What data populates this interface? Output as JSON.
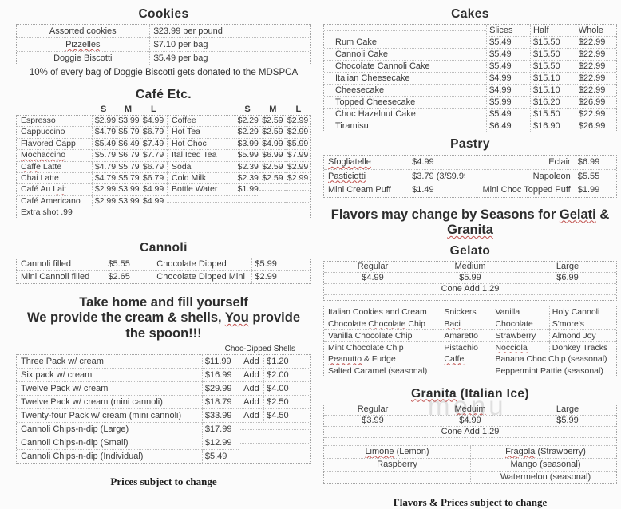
{
  "watermark": "menu",
  "left": {
    "cookies": {
      "title": "Cookies",
      "rows": [
        {
          "item": "Assorted cookies",
          "price": "$23.99 per pound"
        },
        {
          "item": "Pizzelles",
          "mark": "Pizzelles",
          "price": "$7.10 per bag"
        },
        {
          "item": "Doggie Biscotti",
          "price": "$5.49 per bag"
        }
      ],
      "note": "10% of every bag of Doggie Biscotti gets donated to the MDSPCA"
    },
    "cafe": {
      "title": "Café Etc.",
      "size_headers": [
        "S",
        "M",
        "L"
      ],
      "rows": [
        {
          "l_item": "Espresso",
          "l_s": "$2.99",
          "l_m": "$3.99",
          "l_l": "$4.99",
          "r_item": "Coffee",
          "r_s": "$2.29",
          "r_m": "$2.59",
          "r_l": "$2.99"
        },
        {
          "l_item": "Cappuccino",
          "l_s": "$4.79",
          "l_m": "$5.79",
          "l_l": "$6.79",
          "r_item": "Hot Tea",
          "r_s": "$2.29",
          "r_m": "$2.59",
          "r_l": "$2.99"
        },
        {
          "l_item": "Flavored Capp",
          "l_s": "$5.49",
          "l_m": "$6.49",
          "l_l": "$7.49",
          "r_item": "Hot Choc",
          "r_s": "$3.99",
          "r_m": "$4.99",
          "r_l": "$5.99"
        },
        {
          "l_item": "Mochaccino",
          "l_mark": "Mochaccino",
          "l_s": "$5.79",
          "l_m": "$6.79",
          "l_l": "$7.79",
          "r_item": "Ital Iced Tea",
          "r_s": "$5.99",
          "r_m": "$6.99",
          "r_l": "$7.99"
        },
        {
          "l_item": "Caffe Latte",
          "l_mark": "Caffe",
          "l_s": "$4.79",
          "l_m": "$5.79",
          "l_l": "$6.79",
          "r_item": "Soda",
          "r_s": "$2.39",
          "r_m": "$2.59",
          "r_l": "$2.99"
        },
        {
          "l_item": "Chai Latte",
          "l_s": "$4.79",
          "l_m": "$5.79",
          "l_l": "$6.79",
          "r_item": "Cold Milk",
          "r_s": "$2.39",
          "r_m": "$2.59",
          "r_l": "$2.99"
        },
        {
          "l_item": "Café Au Lait",
          "l_mark": "Lait",
          "l_s": "$2.99",
          "l_m": "$3.99",
          "l_l": "$4.99",
          "r_item": "Bottle Water",
          "r_s": "$1.99",
          "r_m": "",
          "r_l": ""
        },
        {
          "l_item": "Café Americano",
          "l_s": "$2.99",
          "l_m": "$3.99",
          "l_l": "$4.99",
          "r_item": "",
          "r_s": "",
          "r_m": "",
          "r_l": ""
        },
        {
          "l_item": "Extra shot .99",
          "l_s": "",
          "l_m": "",
          "l_l": "",
          "r_item": "",
          "r_s": "",
          "r_m": "",
          "r_l": ""
        }
      ]
    },
    "cannoli": {
      "title": "Cannoli",
      "rows": [
        {
          "c1": "Cannoli filled",
          "p1": "$5.55",
          "c2": "Chocolate Dipped",
          "p2": "$5.99"
        },
        {
          "c1": "Mini Cannoli filled",
          "p1": "$2.65",
          "c2": "Chocolate Dipped Mini",
          "p2": "$2.99"
        }
      ]
    },
    "take_home": {
      "line1": "Take home and fill yourself",
      "line2_p1": "We provide the cream & shells, ",
      "line2_m": "You",
      "line2_p2": " provide the spoon!!!"
    },
    "packs": {
      "shells_label": "Choc-Dipped Shells",
      "rows": [
        {
          "item": "Three Pack w/ cream",
          "price": "$11.99",
          "add": "Add",
          "shell": "$1.20"
        },
        {
          "item": "Six pack w/ cream",
          "price": "$16.99",
          "add": "Add",
          "shell": "$2.00"
        },
        {
          "item": "Twelve Pack w/ cream",
          "price": "$29.99",
          "add": "Add",
          "shell": "$4.00"
        },
        {
          "item": "Twelve Pack w/ cream (mini cannoli)",
          "price": "$18.79",
          "add": "Add",
          "shell": "$2.50"
        },
        {
          "item": "Twenty-four Pack w/ cream (mini cannoli)",
          "price": "$33.99",
          "add": "Add",
          "shell": "$4.50"
        },
        {
          "item": "Cannoli Chips-n-dip (Large)",
          "price": "$17.99",
          "add": "",
          "shell": ""
        },
        {
          "item": "Cannoli Chips-n-dip (Small)",
          "price": "$12.99",
          "add": "",
          "shell": ""
        },
        {
          "item": "Cannoli Chips-n-dip (Individual)",
          "price": "$5.49",
          "add": "",
          "shell": ""
        }
      ]
    },
    "footer_note": "Prices subject to change"
  },
  "right": {
    "cakes": {
      "title": "Cakes",
      "headers": [
        "Slices",
        "Half",
        "Whole"
      ],
      "rows": [
        {
          "item": "Rum Cake",
          "slices": "$5.49",
          "half": "$15.50",
          "whole": "$22.99"
        },
        {
          "item": "Cannoli Cake",
          "slices": "$5.49",
          "half": "$15.50",
          "whole": "$22.99"
        },
        {
          "item": "Chocolate Cannoli Cake",
          "slices": "$5.49",
          "half": "$15.50",
          "whole": "$22.99"
        },
        {
          "item": "Italian Cheesecake",
          "slices": "$4.99",
          "half": "$15.10",
          "whole": "$22.99"
        },
        {
          "item": "Cheesecake",
          "slices": "$4.99",
          "half": "$15.10",
          "whole": "$22.99"
        },
        {
          "item": "Topped Cheesecake",
          "slices": "$5.99",
          "half": "$16.20",
          "whole": "$26.99"
        },
        {
          "item": "Choc Hazelnut Cake",
          "slices": "$5.49",
          "half": "$15.50",
          "whole": "$22.99"
        },
        {
          "item": "Tiramisu",
          "slices": "$6.49",
          "half": "$16.90",
          "whole": "$26.99"
        }
      ]
    },
    "pastry": {
      "title": "Pastry",
      "rows": [
        {
          "l_item": "Sfogliatelle",
          "l_mark": "Sfogliatelle",
          "l_price": "$4.99",
          "r_item": "Eclair",
          "r_price": "$6.99"
        },
        {
          "l_item": "Pasticiotti",
          "l_mark": "Pasticiotti",
          "l_price": "$3.79 (3/$9.99)",
          "r_item": "Napoleon",
          "r_price": "$5.55"
        },
        {
          "l_item": "Mini Cream Puff",
          "l_price": "$1.49",
          "r_item": "Mini Choc Topped Puff",
          "r_price": "$1.99"
        }
      ]
    },
    "seasons_note": {
      "p1": "Flavors may change by Seasons for ",
      "m1": "Gelati",
      "p2": " & ",
      "m2": "Granita"
    },
    "gelato": {
      "title": "Gelato",
      "headers": [
        "Regular",
        "Medium",
        "Large"
      ],
      "prices": [
        "$4.99",
        "$5.99",
        "$6.99"
      ],
      "cone": "Cone Add 1.29"
    },
    "gelato_flavors": {
      "rows4": [
        {
          "c1": "Italian Cookies and Cream",
          "c2": "Snickers",
          "c3": "Vanilla",
          "c4": "Holy Cannoli"
        },
        {
          "c1": "Chocolate Chocolate Chip",
          "c1_mark": " Chocolate ",
          "c2": "Baci",
          "c2_mark": "Baci",
          "c3": "Chocolate",
          "c4": "S'more's"
        },
        {
          "c1": "Vanilla Chocolate Chip",
          "c2": "Amaretto",
          "c3": "Strawberry",
          "c4": "Almond Joy"
        },
        {
          "c1": "Mint Chocolate Chip",
          "c2": "Pistachio",
          "c3": "Nocciola",
          "c3_mark": "Nocciola",
          "c4": "Donkey Tracks"
        }
      ],
      "rows3": [
        {
          "c1": "Peanutto & Fudge",
          "c1_mark": "Peanutto",
          "c2": "Caffe",
          "c2_mark": "Caffe",
          "wide": "Banana Choc Chip (seasonal)"
        },
        {
          "c1": "Salted Caramel (seasonal)",
          "c2": "",
          "wide": "Peppermint Pattie (seasonal)"
        }
      ]
    },
    "granita": {
      "title_m": "Granita",
      "title_rest": " (Italian Ice)",
      "headers": [
        "Regular",
        "Meduim",
        "Large"
      ],
      "prices": [
        "$3.99",
        "$4.99",
        "$5.99"
      ],
      "cone": "Cone Add 1.29",
      "flavor_rows": [
        {
          "c1": "Limone (Lemon)",
          "c1_mark": "Limone",
          "c2": "Fragola (Strawberry)",
          "c2_mark": "Fragola"
        },
        {
          "c1": "Raspberry",
          "c2": "Mango (seasonal)"
        },
        {
          "c1": "",
          "c2": "Watermelon (seasonal)"
        }
      ]
    },
    "footer_note": "Flavors & Prices subject to change"
  }
}
